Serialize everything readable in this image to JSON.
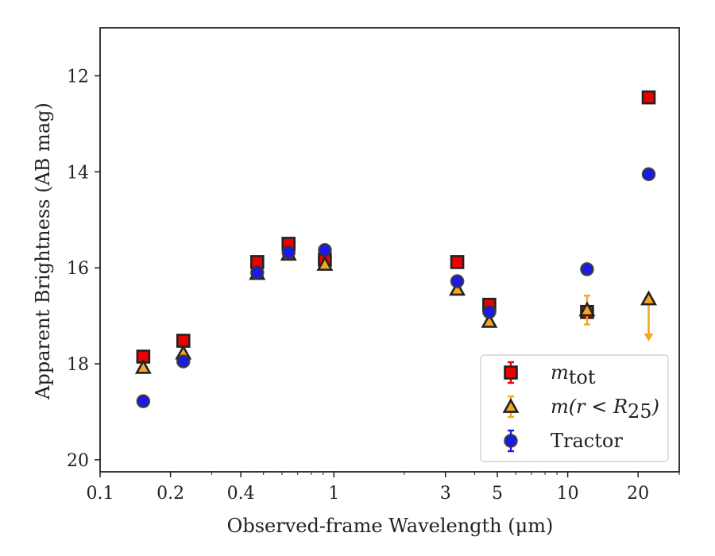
{
  "chart_data": {
    "type": "scatter",
    "xlabel": "Observed-frame Wavelength (μm)",
    "ylabel": "Apparent Brightness (AB mag)",
    "xscale": "log",
    "xlim": [
      0.1,
      30
    ],
    "ylim": [
      20.25,
      11.0
    ],
    "y_inverted": true,
    "x_ticks": [
      0.1,
      0.2,
      0.4,
      1,
      3,
      5,
      10,
      20
    ],
    "x_tick_labels": [
      "0.1",
      "0.2",
      "0.4",
      "1",
      "3",
      "5",
      "10",
      "20"
    ],
    "y_ticks": [
      12,
      14,
      16,
      18,
      20
    ],
    "y_tick_labels": [
      "12",
      "14",
      "16",
      "18",
      "20"
    ],
    "legend_position": "lower-right",
    "series": [
      {
        "name": "m_tot",
        "label_main": "m",
        "label_sub": "tot",
        "marker": "square",
        "color": "#ee0000",
        "edge": "#222222",
        "points": [
          {
            "x": 0.153,
            "y": 17.85,
            "err": 0.05
          },
          {
            "x": 0.227,
            "y": 17.52,
            "err": 0.05
          },
          {
            "x": 0.47,
            "y": 15.88,
            "err": 0.04
          },
          {
            "x": 0.64,
            "y": 15.5,
            "err": 0.04
          },
          {
            "x": 0.915,
            "y": 15.83,
            "err": 0.04
          },
          {
            "x": 3.37,
            "y": 15.88,
            "err": 0.03
          },
          {
            "x": 4.62,
            "y": 16.77,
            "err": 0.03
          },
          {
            "x": 12.1,
            "y": 16.92,
            "err": 0.04
          },
          {
            "x": 22.2,
            "y": 12.45,
            "err": 0.03
          }
        ]
      },
      {
        "name": "m(r < R_25)",
        "label_main": "m(r < R",
        "label_sub": "25",
        "label_end": ")",
        "marker": "triangle",
        "color": "#f5a623",
        "edge": "#222222",
        "points": [
          {
            "x": 0.153,
            "y": 18.08,
            "err": 0.05
          },
          {
            "x": 0.227,
            "y": 17.78,
            "err": 0.05
          },
          {
            "x": 0.47,
            "y": 16.12,
            "err": 0.04
          },
          {
            "x": 0.64,
            "y": 15.72,
            "err": 0.04
          },
          {
            "x": 0.915,
            "y": 15.93,
            "err": 0.04
          },
          {
            "x": 3.37,
            "y": 16.45,
            "err": 0.04
          },
          {
            "x": 4.62,
            "y": 17.12,
            "err": 0.04
          },
          {
            "x": 12.1,
            "y": 16.88,
            "err": 0.3
          },
          {
            "x": 22.2,
            "y": 16.65,
            "err": 0,
            "upper_limit_to": 17.5
          }
        ]
      },
      {
        "name": "Tractor",
        "label_main": "Tractor",
        "marker": "circle",
        "color": "#1a1aee",
        "edge": "#333333",
        "points": [
          {
            "x": 0.153,
            "y": 18.78,
            "err": 0.05
          },
          {
            "x": 0.227,
            "y": 17.95,
            "err": 0.05
          },
          {
            "x": 0.47,
            "y": 16.1,
            "err": 0.04
          },
          {
            "x": 0.64,
            "y": 15.68,
            "err": 0.04
          },
          {
            "x": 0.915,
            "y": 15.63,
            "err": 0.04
          },
          {
            "x": 3.37,
            "y": 16.28,
            "err": 0.03
          },
          {
            "x": 4.62,
            "y": 16.92,
            "err": 0.03
          },
          {
            "x": 12.1,
            "y": 16.03,
            "err": 0.03
          },
          {
            "x": 22.2,
            "y": 14.05,
            "err": 0.03
          }
        ]
      }
    ]
  }
}
